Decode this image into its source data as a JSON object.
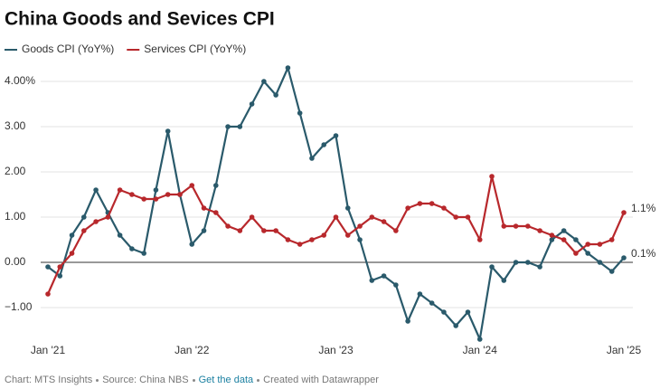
{
  "chart_data": {
    "type": "line",
    "title": "China Goods and Sevices CPI",
    "categories": [
      "Jan '21",
      null,
      null,
      null,
      null,
      null,
      null,
      null,
      null,
      null,
      null,
      null,
      "Jan '22",
      null,
      null,
      null,
      null,
      null,
      null,
      null,
      null,
      null,
      null,
      null,
      "Jan '23",
      null,
      null,
      null,
      null,
      null,
      null,
      null,
      null,
      null,
      null,
      null,
      "Jan '24",
      null,
      null,
      null,
      null,
      null,
      null,
      null,
      null,
      null,
      null,
      null,
      "Jan '25"
    ],
    "series": [
      {
        "name": "Goods CPI (YoY%)",
        "color": "#2a5a6b",
        "values": [
          -0.1,
          -0.3,
          0.6,
          1.0,
          1.6,
          1.1,
          0.6,
          0.3,
          0.2,
          1.6,
          2.9,
          1.5,
          0.4,
          0.7,
          1.7,
          3.0,
          3.0,
          3.5,
          4.0,
          3.7,
          4.3,
          3.3,
          2.3,
          2.6,
          2.8,
          1.2,
          0.5,
          -0.4,
          -0.3,
          -0.5,
          -1.3,
          -0.7,
          -0.9,
          -1.1,
          -1.4,
          -1.1,
          -1.7,
          -0.1,
          -0.4,
          0.0,
          0.0,
          -0.1,
          0.5,
          0.7,
          0.5,
          0.2,
          0.0,
          -0.2,
          0.1
        ],
        "value_labels": [
          null,
          null,
          null,
          null,
          null,
          null,
          null,
          null,
          null,
          null,
          null,
          null,
          null,
          null,
          null,
          null,
          null,
          null,
          null,
          null,
          null,
          null,
          null,
          null,
          null,
          null,
          null,
          null,
          null,
          null,
          null,
          null,
          null,
          null,
          null,
          null,
          null,
          null,
          null,
          null,
          null,
          null,
          null,
          null,
          null,
          null,
          null,
          null,
          "0.1%"
        ]
      },
      {
        "name": "Services CPI (YoY%)",
        "color": "#b8282c",
        "values": [
          -0.7,
          -0.1,
          0.2,
          0.7,
          0.9,
          1.0,
          1.6,
          1.5,
          1.4,
          1.4,
          1.5,
          1.5,
          1.7,
          1.2,
          1.1,
          0.8,
          0.7,
          1.0,
          0.7,
          0.7,
          0.5,
          0.4,
          0.5,
          0.6,
          1.0,
          0.6,
          0.8,
          1.0,
          0.9,
          0.7,
          1.2,
          1.3,
          1.3,
          1.2,
          1.0,
          1.0,
          0.5,
          1.9,
          0.8,
          0.8,
          0.8,
          0.7,
          0.6,
          0.5,
          0.2,
          0.4,
          0.4,
          0.5,
          1.1
        ],
        "value_labels": [
          null,
          null,
          null,
          null,
          null,
          null,
          null,
          null,
          null,
          null,
          null,
          null,
          null,
          null,
          null,
          null,
          null,
          null,
          null,
          null,
          null,
          null,
          null,
          null,
          null,
          null,
          null,
          null,
          null,
          null,
          null,
          null,
          null,
          null,
          null,
          null,
          null,
          null,
          null,
          null,
          null,
          null,
          null,
          null,
          null,
          null,
          null,
          null,
          "1.1%"
        ]
      }
    ],
    "ylim": [
      -1.8,
      4.2
    ],
    "yticks": [
      {
        "value": 4,
        "label": "4.00%"
      },
      {
        "value": 3,
        "label": "3.00"
      },
      {
        "value": 2,
        "label": "2.00"
      },
      {
        "value": 1,
        "label": "1.00"
      },
      {
        "value": 0,
        "label": "0.00"
      },
      {
        "value": -1,
        "label": "−1.00"
      }
    ],
    "grid": true,
    "legend": "top-left",
    "footer": {
      "credit": "Chart: MTS Insights",
      "source": "Source: China NBS",
      "link": "Get the data",
      "created": "Created with Datawrapper"
    }
  }
}
